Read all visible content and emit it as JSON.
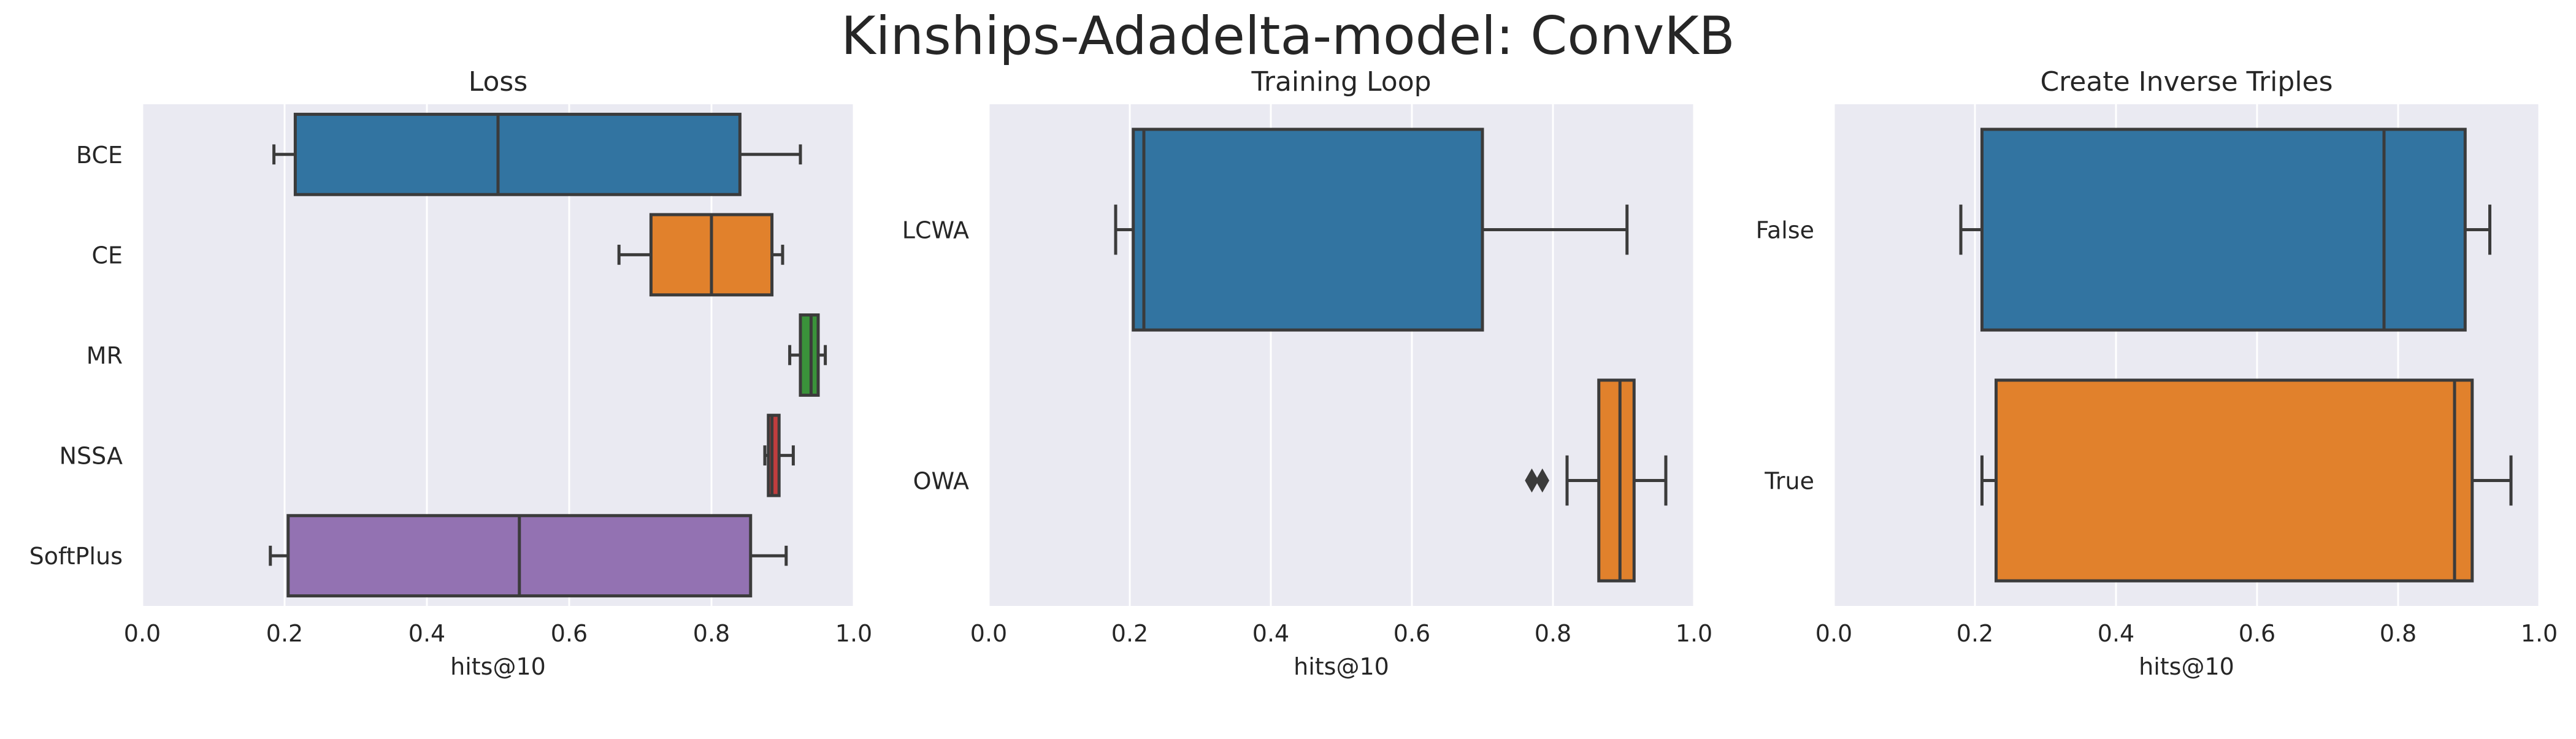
{
  "figure": {
    "title": "Kinships-Adadelta-model: ConvKB",
    "background": "#ffffff",
    "panel_background": "#eaeaf2",
    "grid_color": "#ffffff",
    "line_color": "#3b3b3b"
  },
  "chart_data": [
    {
      "type": "box",
      "orientation": "horizontal",
      "title": "Loss",
      "xlabel": "hits@10",
      "ylabel": "",
      "xlim": [
        0.0,
        1.0
      ],
      "xticks": [
        "0.0",
        "0.2",
        "0.4",
        "0.6",
        "0.8",
        "1.0"
      ],
      "grid": true,
      "categories": [
        "BCE",
        "CE",
        "MR",
        "NSSA",
        "SoftPlus"
      ],
      "boxes": [
        {
          "label": "BCE",
          "whisker_low": 0.185,
          "q1": 0.215,
          "median": 0.5,
          "q3": 0.84,
          "whisker_high": 0.925,
          "color": "#3274a1",
          "outliers": []
        },
        {
          "label": "CE",
          "whisker_low": 0.67,
          "q1": 0.715,
          "median": 0.8,
          "q3": 0.885,
          "whisker_high": 0.9,
          "color": "#e1812c",
          "outliers": []
        },
        {
          "label": "MR",
          "whisker_low": 0.91,
          "q1": 0.925,
          "median": 0.94,
          "q3": 0.95,
          "whisker_high": 0.96,
          "color": "#3a923a",
          "outliers": []
        },
        {
          "label": "NSSA",
          "whisker_low": 0.875,
          "q1": 0.88,
          "median": 0.885,
          "q3": 0.895,
          "whisker_high": 0.915,
          "color": "#c03d3e",
          "outliers": []
        },
        {
          "label": "SoftPlus",
          "whisker_low": 0.18,
          "q1": 0.205,
          "median": 0.53,
          "q3": 0.855,
          "whisker_high": 0.905,
          "color": "#9372b2",
          "outliers": []
        }
      ]
    },
    {
      "type": "box",
      "orientation": "horizontal",
      "title": "Training Loop",
      "xlabel": "hits@10",
      "ylabel": "",
      "xlim": [
        0.0,
        1.0
      ],
      "xticks": [
        "0.0",
        "0.2",
        "0.4",
        "0.6",
        "0.8",
        "1.0"
      ],
      "grid": true,
      "categories": [
        "LCWA",
        "OWA"
      ],
      "boxes": [
        {
          "label": "LCWA",
          "whisker_low": 0.18,
          "q1": 0.205,
          "median": 0.22,
          "q3": 0.7,
          "whisker_high": 0.905,
          "color": "#3274a1",
          "outliers": []
        },
        {
          "label": "OWA",
          "whisker_low": 0.82,
          "q1": 0.865,
          "median": 0.895,
          "q3": 0.915,
          "whisker_high": 0.96,
          "color": "#e1812c",
          "outliers": [
            0.77,
            0.785
          ]
        }
      ]
    },
    {
      "type": "box",
      "orientation": "horizontal",
      "title": "Create Inverse Triples",
      "xlabel": "hits@10",
      "ylabel": "",
      "xlim": [
        0.0,
        1.0
      ],
      "xticks": [
        "0.0",
        "0.2",
        "0.4",
        "0.6",
        "0.8",
        "1.0"
      ],
      "grid": true,
      "categories": [
        "False",
        "True"
      ],
      "boxes": [
        {
          "label": "False",
          "whisker_low": 0.18,
          "q1": 0.21,
          "median": 0.78,
          "q3": 0.895,
          "whisker_high": 0.93,
          "color": "#3274a1",
          "outliers": []
        },
        {
          "label": "True",
          "whisker_low": 0.21,
          "q1": 0.23,
          "median": 0.88,
          "q3": 0.905,
          "whisker_high": 0.96,
          "color": "#e1812c",
          "outliers": []
        }
      ]
    }
  ]
}
